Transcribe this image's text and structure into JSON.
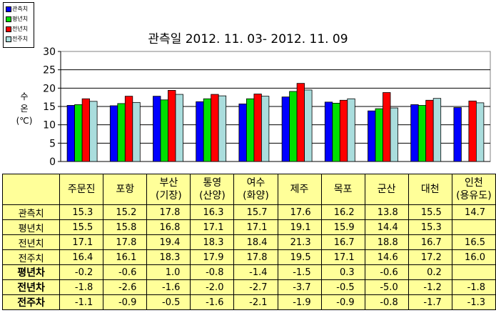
{
  "legend": [
    {
      "label": "관측치",
      "color": "#0000ff"
    },
    {
      "label": "평년치",
      "color": "#00e000"
    },
    {
      "label": "전년치",
      "color": "#ff0000"
    },
    {
      "label": "전주치",
      "color": "#aadddd"
    }
  ],
  "chart_data": {
    "type": "bar",
    "title": "관측일 2012. 11. 03-  2012. 11. 09",
    "ylabel": "수\n온\n(℃)",
    "ylim": [
      0,
      30
    ],
    "yticks": [
      "0",
      "5",
      "10",
      "15",
      "20",
      "25",
      "30"
    ],
    "grid": true,
    "categories": [
      "주문진",
      "포항",
      "부산(기장)",
      "통영(산양)",
      "여수(화양)",
      "제주",
      "목포",
      "군산",
      "대천",
      "인천(용유도)"
    ],
    "series": [
      {
        "name": "관측치",
        "color": "#0000ff",
        "values": [
          15.3,
          15.2,
          17.8,
          16.3,
          15.7,
          17.6,
          16.2,
          13.8,
          15.5,
          14.7
        ]
      },
      {
        "name": "평년치",
        "color": "#00e000",
        "values": [
          15.5,
          15.8,
          16.8,
          17.1,
          17.1,
          19.1,
          15.9,
          14.4,
          15.3,
          null
        ]
      },
      {
        "name": "전년치",
        "color": "#ff0000",
        "values": [
          17.1,
          17.8,
          19.4,
          18.3,
          18.4,
          21.3,
          16.7,
          18.8,
          16.7,
          16.5
        ]
      },
      {
        "name": "전주치",
        "color": "#aadddd",
        "values": [
          16.4,
          16.1,
          18.3,
          17.9,
          17.8,
          19.5,
          17.1,
          14.6,
          17.2,
          16.0
        ]
      }
    ]
  },
  "table": {
    "headers": [
      [
        "주문진"
      ],
      [
        "포항"
      ],
      [
        "부산",
        "(기장)"
      ],
      [
        "통영",
        "(산양)"
      ],
      [
        "여수",
        "(화양)"
      ],
      [
        "제주"
      ],
      [
        "목포"
      ],
      [
        "군산"
      ],
      [
        "대천"
      ],
      [
        "인천",
        "(용유도)"
      ]
    ],
    "rows": [
      {
        "label": "관측치",
        "bold": false,
        "values": [
          "15.3",
          "15.2",
          "17.8",
          "16.3",
          "15.7",
          "17.6",
          "16.2",
          "13.8",
          "15.5",
          "14.7"
        ]
      },
      {
        "label": "평년치",
        "bold": false,
        "values": [
          "15.5",
          "15.8",
          "16.8",
          "17.1",
          "17.1",
          "19.1",
          "15.9",
          "14.4",
          "15.3",
          ""
        ]
      },
      {
        "label": "전년치",
        "bold": false,
        "values": [
          "17.1",
          "17.8",
          "19.4",
          "18.3",
          "18.4",
          "21.3",
          "16.7",
          "18.8",
          "16.7",
          "16.5"
        ]
      },
      {
        "label": "전주치",
        "bold": false,
        "values": [
          "16.4",
          "16.1",
          "18.3",
          "17.9",
          "17.8",
          "19.5",
          "17.1",
          "14.6",
          "17.2",
          "16.0"
        ]
      },
      {
        "label": "평년차",
        "bold": true,
        "values": [
          "-0.2",
          "-0.6",
          "1.0",
          "-0.8",
          "-1.4",
          "-1.5",
          "0.3",
          "-0.6",
          "0.2",
          ""
        ]
      },
      {
        "label": "전년차",
        "bold": true,
        "values": [
          "-1.8",
          "-2.6",
          "-1.6",
          "-2.0",
          "-2.7",
          "-3.7",
          "-0.5",
          "-5.0",
          "-1.2",
          "-1.8"
        ]
      },
      {
        "label": "전주차",
        "bold": true,
        "values": [
          "-1.1",
          "-0.9",
          "-0.5",
          "-1.6",
          "-2.1",
          "-1.9",
          "-0.9",
          "-0.8",
          "-1.7",
          "-1.3"
        ]
      }
    ]
  }
}
